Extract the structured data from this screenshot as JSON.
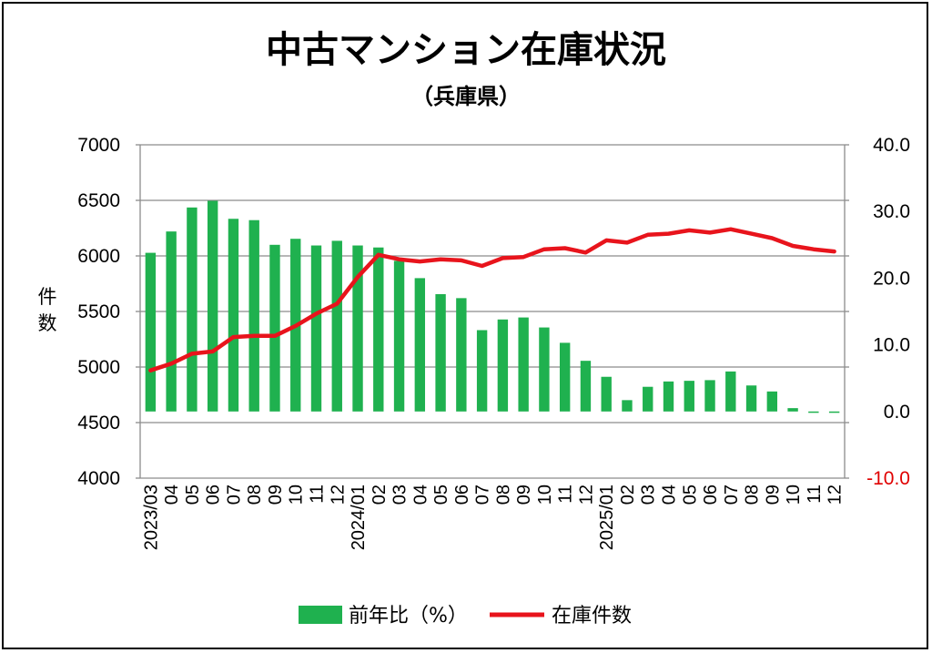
{
  "chart_data": {
    "type": "bar+line",
    "title": "中古マンション在庫状況",
    "subtitle": "（兵庫県）",
    "ylabel_left": "件数",
    "ylabel_left_chars": [
      "件",
      "数"
    ],
    "left_ylim": [
      4000,
      7000
    ],
    "left_ticks": [
      "7000",
      "6500",
      "6000",
      "5500",
      "5000",
      "4500",
      "4000"
    ],
    "right_ylim": [
      -10.0,
      40.0
    ],
    "right_ticks": [
      "40.0",
      "30.0",
      "20.0",
      "10.0",
      "0.0",
      "-10.0"
    ],
    "grid": true,
    "categories": [
      "2023/03",
      "04",
      "05",
      "06",
      "07",
      "08",
      "09",
      "10",
      "11",
      "12",
      "2024/01",
      "02",
      "03",
      "04",
      "05",
      "06",
      "07",
      "08",
      "09",
      "10",
      "11",
      "12",
      "2025/01",
      "02",
      "03",
      "04",
      "05",
      "06",
      "07",
      "08",
      "09",
      "10",
      "11",
      "12"
    ],
    "series": [
      {
        "name": "前年比（%）",
        "type": "bar",
        "axis": "right",
        "color": "#1fb14f",
        "values": [
          23.8,
          27.0,
          30.6,
          31.6,
          28.9,
          28.7,
          25.0,
          25.9,
          24.9,
          25.6,
          24.9,
          24.6,
          22.6,
          20.0,
          17.6,
          17.0,
          12.2,
          13.8,
          14.1,
          12.6,
          10.3,
          7.6,
          5.2,
          1.7,
          3.7,
          4.5,
          4.6,
          4.7,
          6.0,
          3.9,
          3.0,
          0.5,
          -0.2,
          -0.1
        ]
      },
      {
        "name": "在庫件数",
        "type": "line",
        "axis": "left",
        "color": "#e8141c",
        "values": [
          4970,
          5030,
          5120,
          5140,
          5270,
          5280,
          5280,
          5370,
          5480,
          5570,
          5810,
          6010,
          5970,
          5950,
          5970,
          5960,
          5910,
          5980,
          5990,
          6060,
          6070,
          6030,
          6140,
          6120,
          6190,
          6200,
          6230,
          6210,
          6240,
          6200,
          6160,
          6090,
          6060,
          6040
        ]
      }
    ],
    "legend": [
      "前年比（%）",
      "在庫件数"
    ],
    "legend_position": "bottom"
  }
}
